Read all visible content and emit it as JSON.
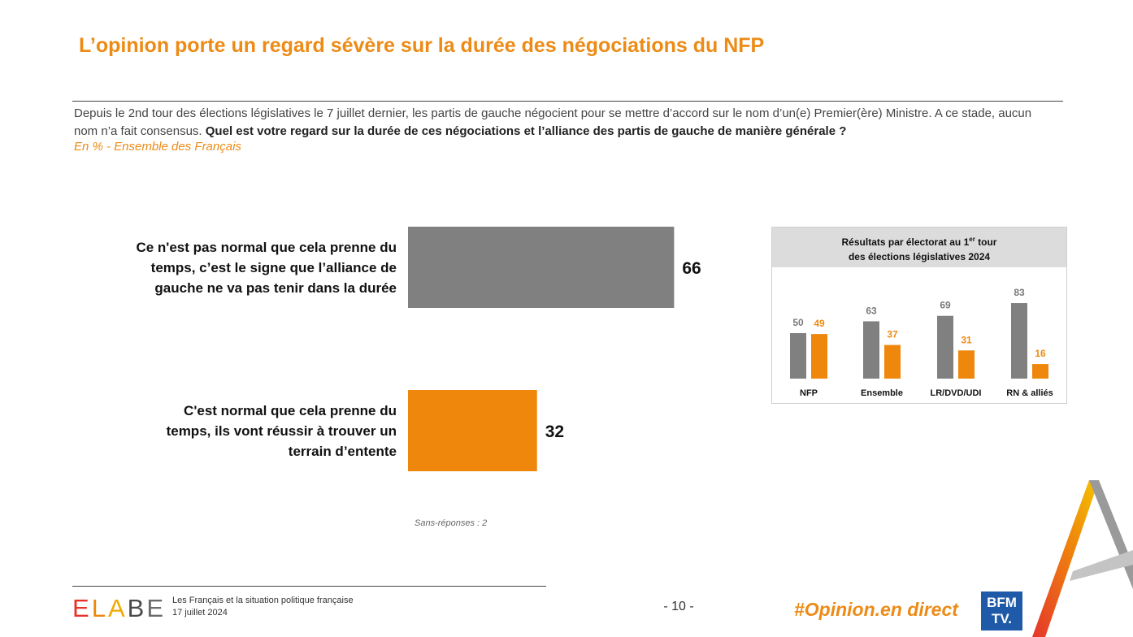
{
  "title": "L’opinion porte un regard sévère sur la durée des négociations du NFP",
  "intro": {
    "text": "Depuis le 2nd tour des élections législatives le 7 juillet dernier, les partis de gauche négocient pour se mettre d’accord sur le nom d’un(e) Premier(ère) Ministre. A ce stade, aucun nom n’a fait consensus.",
    "question": "Quel est votre regard sur la durée de ces négociations et l’alliance des partis de gauche de manière générale ?",
    "base": "En % - Ensemble des Français"
  },
  "chart_data": [
    {
      "type": "bar",
      "orientation": "horizontal",
      "categories": [
        "Ce n'est pas normal que cela prenne du temps,  c’est le signe que l’alliance de gauche ne va pas tenir dans la durée",
        "C'est normal que cela prenne du temps, ils vont réussir à trouver un terrain d’entente"
      ],
      "label_lines": [
        [
          "Ce n'est pas normal que cela prenne du",
          "temps,  c’est le signe que l’alliance de",
          "gauche ne va pas tenir dans la durée"
        ],
        [
          "C'est normal que cela prenne du",
          "temps, ils vont réussir à trouver un",
          "terrain d’entente"
        ]
      ],
      "values": [
        66,
        32
      ],
      "value_labels": [
        "66",
        "32"
      ],
      "colors": [
        "#808080",
        "#ee870c"
      ],
      "xlim": [
        0,
        100
      ],
      "unit": "%",
      "note": "Sans-réponses : 2"
    },
    {
      "type": "bar",
      "title_line1": "Résultats par électorat au 1",
      "title_sup": "er",
      "title_line1_end": " tour",
      "title_line2": "des élections législatives 2024",
      "categories": [
        "NFP",
        "Ensemble",
        "LR/DVD/UDI",
        "RN & alliés"
      ],
      "series": [
        {
          "name": "Pas normal",
          "color": "#808080",
          "values": [
            50,
            63,
            69,
            83
          ],
          "labels": [
            "50",
            "63",
            "69",
            "83"
          ]
        },
        {
          "name": "Normal",
          "color": "#ee870c",
          "values": [
            49,
            37,
            31,
            16
          ],
          "labels": [
            "49",
            "37",
            "31",
            "16"
          ]
        }
      ],
      "ylim": [
        0,
        100
      ]
    }
  ],
  "footer": {
    "logo_letters": [
      "E",
      "L",
      "A",
      "B",
      "E"
    ],
    "logo_colors": [
      "#e5352b",
      "#ee870c",
      "#f2a900",
      "#4a4a4a",
      "#6b6b6b"
    ],
    "study_title": "Les Français et la situation politique française",
    "date": "17 juillet 2024",
    "page": "- 10 -",
    "hashtag": "#Opinion.en direct",
    "bfm_line1": "BFM",
    "bfm_line2": "TV."
  }
}
